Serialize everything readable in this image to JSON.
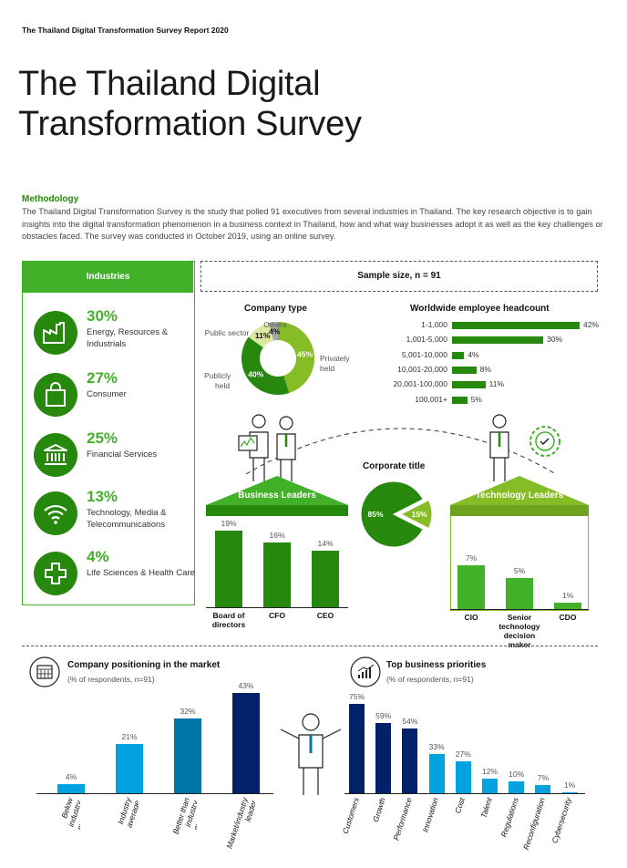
{
  "header": {
    "report_name": "The Thailand Digital Transformation Survey Report 2020",
    "title_line1": "The Thailand Digital",
    "title_line2": "Transformation Survey"
  },
  "methodology": {
    "title": "Methodology",
    "text": "The Thailand Digital Transformation Survey is the study that polled 91 executives from several industries in Thailand. The key research objective is to gain insights into the digital transformation phenomenon in a business context in Thailand, how and what way businesses adopt it as well as the key challenges or obstacles faced. The survey was conducted in October 2019, using an online survey."
  },
  "industries": {
    "title": "Industries",
    "items": [
      {
        "pct": "30%",
        "label": "Energy, Resources & Industrials",
        "icon": "factory-icon"
      },
      {
        "pct": "27%",
        "label": "Consumer",
        "icon": "shopping-bag-icon"
      },
      {
        "pct": "25%",
        "label": "Financial Services",
        "icon": "bank-icon"
      },
      {
        "pct": "13%",
        "label": "Technology, Media & Telecommunications",
        "icon": "wifi-icon"
      },
      {
        "pct": "4%",
        "label": "Life Sciences & Health Care",
        "icon": "medical-cross-icon"
      }
    ]
  },
  "sample": {
    "label": "Sample size, n = 91"
  },
  "colors": {
    "dark_green": "#26890d",
    "green": "#43b02a",
    "light_green": "#86bc25",
    "navy": "#012169",
    "blue": "#0076a8",
    "light_blue": "#00a3e0"
  },
  "chart_data": [
    {
      "type": "pie",
      "title": "Company type",
      "slices": [
        {
          "name": "Privately held",
          "value": 45,
          "label": "45%",
          "color": "#86bc25"
        },
        {
          "name": "Publicly held",
          "value": 40,
          "label": "40%",
          "color": "#26890d"
        },
        {
          "name": "Public sector",
          "value": 11,
          "label": "11%",
          "color": "#dce8a0"
        },
        {
          "name": "Others",
          "value": 4,
          "label": "4%",
          "color": "#a8a8a8"
        }
      ]
    },
    {
      "type": "bar",
      "title": "Worldwide employee headcount",
      "categories": [
        "1-1,000",
        "1,001-5,000",
        "5,001-10,000",
        "10,001-20,000",
        "20,001-100,000",
        "100,001+"
      ],
      "values": [
        42,
        30,
        4,
        8,
        11,
        5
      ],
      "labels": [
        "42%",
        "30%",
        "4%",
        "8%",
        "11%",
        "5%"
      ]
    },
    {
      "type": "pie",
      "title": "Corporate title",
      "slices": [
        {
          "name": "Business Leaders",
          "value": 85,
          "label": "85%",
          "color": "#26890d"
        },
        {
          "name": "Technology Leaders",
          "value": 15,
          "label": "15%",
          "color": "#86bc25"
        }
      ]
    },
    {
      "type": "bar",
      "title": "Business Leaders",
      "categories": [
        "Board of directors",
        "CFO",
        "CEO"
      ],
      "values": [
        19,
        16,
        14
      ],
      "labels": [
        "19%",
        "16%",
        "14%"
      ]
    },
    {
      "type": "bar",
      "title": "Technology Leaders",
      "categories": [
        "CIO",
        "Senior technology decision maker",
        "CDO"
      ],
      "values": [
        7,
        5,
        1
      ],
      "labels": [
        "7%",
        "5%",
        "1%"
      ]
    },
    {
      "type": "bar",
      "title": "Company positioning in the market",
      "subtitle": "(% of respondents, n=91)",
      "categories": [
        "Below industry average",
        "Industry average",
        "Better than industry average",
        "Market/industry leader"
      ],
      "values": [
        4,
        21,
        32,
        43
      ],
      "labels": [
        "4%",
        "21%",
        "32%",
        "43%"
      ],
      "colors": [
        "#00a3e0",
        "#00a3e0",
        "#0076a8",
        "#012169"
      ]
    },
    {
      "type": "bar",
      "title": "Top business priorities",
      "subtitle": "(% of respondents, n=91)",
      "categories": [
        "Customers",
        "Growth",
        "Performance",
        "Innovation",
        "Cost",
        "Talent",
        "Regulations",
        "Reconfiguration",
        "Cybersecurity"
      ],
      "values": [
        75,
        59,
        54,
        33,
        27,
        12,
        10,
        7,
        1
      ],
      "labels": [
        "75%",
        "59%",
        "54%",
        "33%",
        "27%",
        "12%",
        "10%",
        "7%",
        "1%"
      ],
      "colors": [
        "#012169",
        "#012169",
        "#012169",
        "#00a3e0",
        "#00a3e0",
        "#00a3e0",
        "#00a3e0",
        "#00a3e0",
        "#00a3e0"
      ]
    }
  ]
}
